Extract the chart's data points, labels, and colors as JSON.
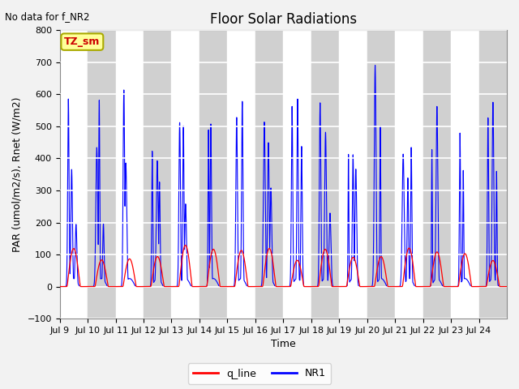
{
  "title": "Floor Solar Radiations",
  "xlabel": "Time",
  "ylabel": "PAR (umol/m2/s), Rnet (W/m2)",
  "top_left_text": "No data for f_NR2",
  "legend_label": "TZ_sm",
  "ylim": [
    -100,
    800
  ],
  "yticks": [
    -100,
    0,
    100,
    200,
    300,
    400,
    500,
    600,
    700,
    800
  ],
  "xtick_labels": [
    "Jul 9",
    "Jul 10",
    "Jul 11",
    "Jul 12",
    "Jul 13",
    "Jul 14",
    "Jul 15",
    "Jul 16",
    "Jul 17",
    "Jul 18",
    "Jul 19",
    "Jul 20",
    "Jul 21",
    "Jul 22",
    "Jul 23",
    "Jul 24"
  ],
  "line1_color": "#ff0000",
  "line2_color": "#0000ff",
  "line1_label": "q_line",
  "line2_label": "NR1",
  "plot_bg_color": "#e8e8e8",
  "fig_bg_color": "#f2f2f2",
  "n_days": 16,
  "title_fontsize": 12,
  "axis_fontsize": 9,
  "tick_fontsize": 8
}
